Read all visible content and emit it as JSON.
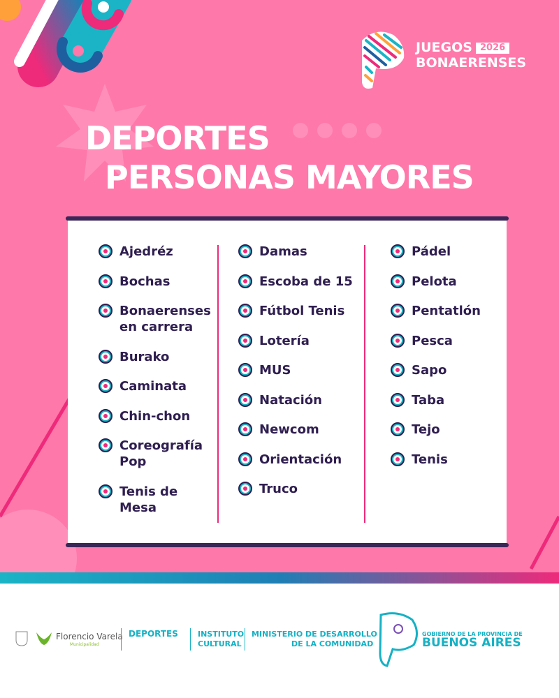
{
  "logo": {
    "line1": "JUEGOS",
    "year": "2026",
    "line2": "BONAERENSES"
  },
  "title": {
    "line1": "DEPORTES",
    "line2": "PERSONAS MAYORES"
  },
  "columns": [
    [
      "Ajedréz",
      "Bochas",
      "Bonaerenses en carrera",
      "Burako",
      "Caminata",
      "Chin-chon",
      "Coreografía Pop",
      "Tenis de Mesa"
    ],
    [
      "Damas",
      "Escoba de 15",
      "Fútbol Tenis",
      "Lotería",
      "MUS",
      "Natación",
      "Newcom",
      "Orientación",
      "Truco"
    ],
    [
      "Pádel",
      "Pelota",
      "Pentatlón",
      "Pesca",
      "Sapo",
      "Taba",
      "Tejo",
      "Tenis"
    ]
  ],
  "footer": {
    "municipio": "Florencio Varela",
    "municipio_sub": "Municipalidad",
    "deportes": "DEPORTES",
    "instituto1": "INSTITUTO",
    "instituto2": "CULTURAL",
    "ministerio1": "MINISTERIO DE DESARROLLO",
    "ministerio2": "DE LA COMUNIDAD",
    "gobierno1": "GOBIERNO DE LA PROVINCIA DE",
    "gobierno2": "BUENOS AIRES"
  },
  "colors": {
    "background": "#ff78aa",
    "text": "#2f1e50",
    "accent_teal": "#1bb4c6",
    "accent_pink": "#ee2a7b"
  }
}
